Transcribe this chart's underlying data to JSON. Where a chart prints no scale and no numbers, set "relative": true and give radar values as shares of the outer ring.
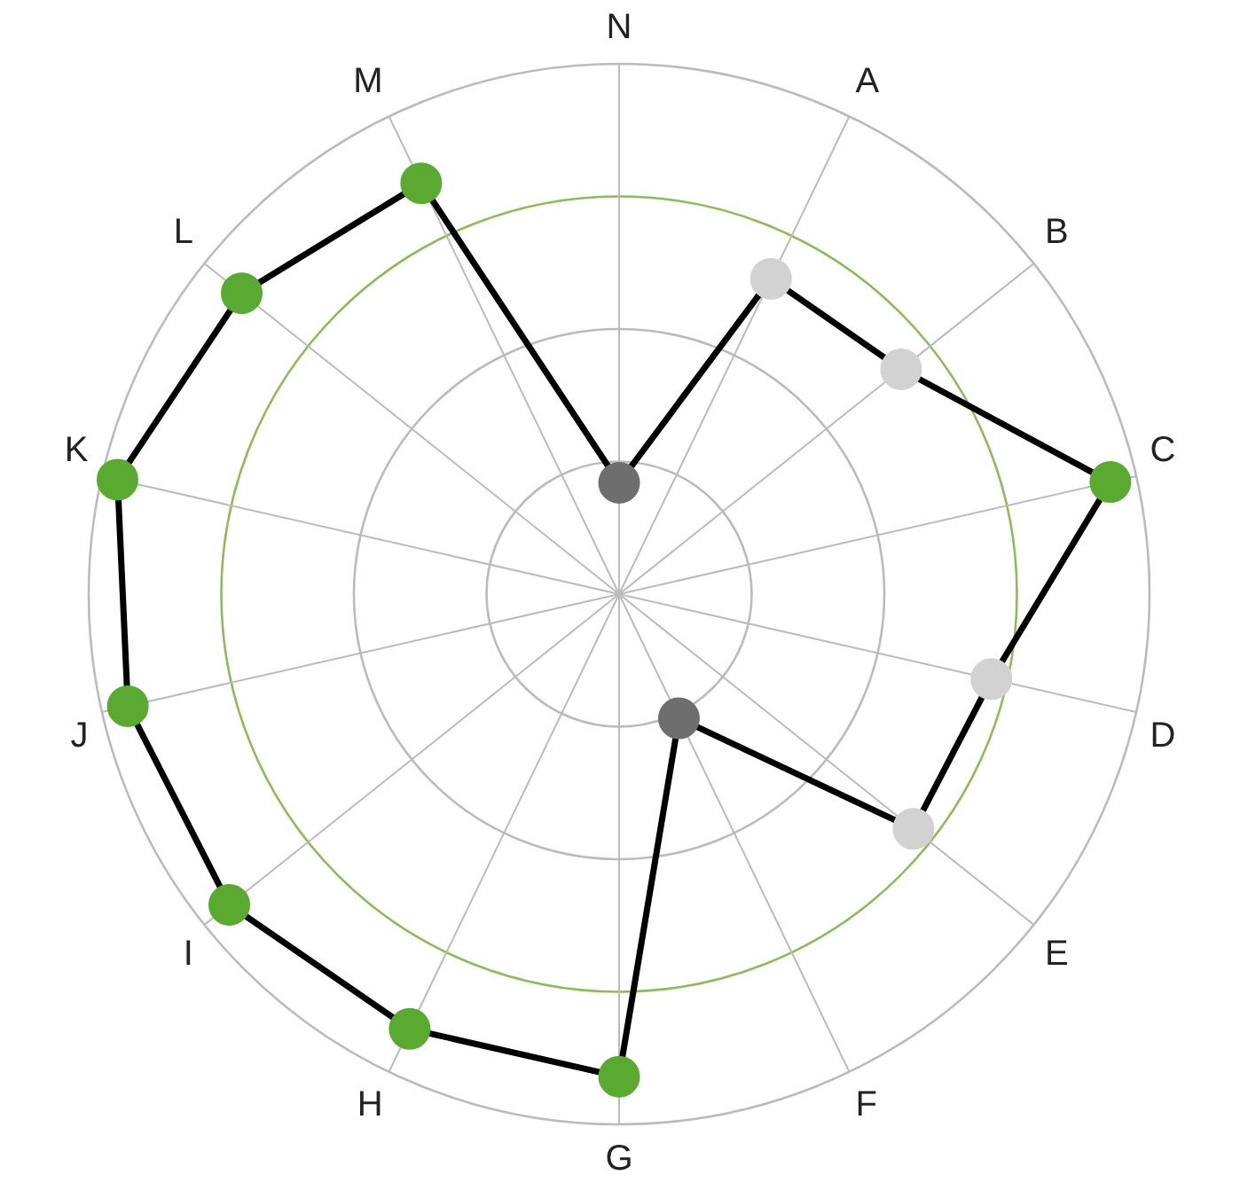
{
  "chart_data": {
    "type": "radar",
    "relative": true,
    "categories": [
      "N",
      "A",
      "B",
      "C",
      "D",
      "E",
      "F",
      "G",
      "H",
      "I",
      "J",
      "K",
      "L",
      "M"
    ],
    "grid": true,
    "legend": false,
    "marker": "circle",
    "line_style": "solid",
    "series": [
      {
        "color": "#000000",
        "values": [
          0.21,
          0.66,
          0.68,
          0.95,
          0.72,
          0.71,
          0.26,
          0.91,
          0.91,
          0.94,
          0.95,
          0.97,
          0.91,
          0.86
        ],
        "colors": [
          "#6e6e6e",
          "#d2d2d2",
          "#d2d2d2",
          "#5aaa32",
          "#d2d2d2",
          "#d2d2d2",
          "#6e6e6e",
          "#5aaa32",
          "#5aaa32",
          "#5aaa32",
          "#5aaa32",
          "#5aaa32",
          "#5aaa32",
          "#5aaa32"
        ]
      }
    ]
  }
}
